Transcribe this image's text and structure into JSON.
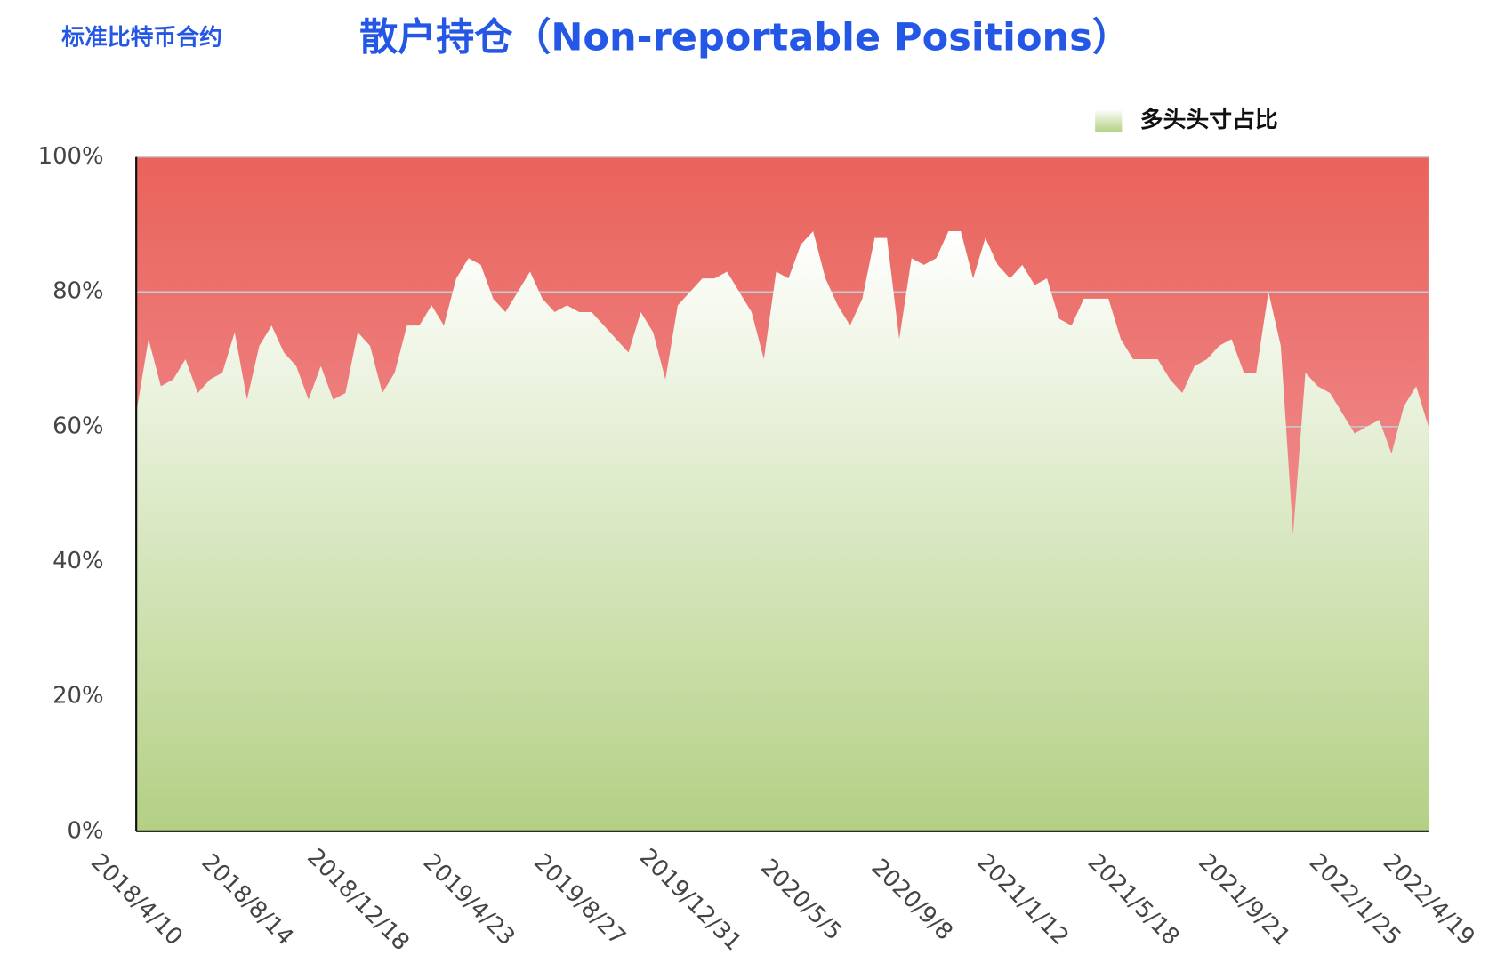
{
  "chart_data": {
    "type": "area",
    "subtitle": "标准比特币合约",
    "title": "散户持仓（Non-reportable Positions）",
    "categories": [
      "2018/4/10",
      null,
      null,
      null,
      null,
      null,
      null,
      null,
      null,
      "2018/8/14",
      null,
      null,
      null,
      null,
      null,
      null,
      null,
      null,
      "2018/12/18",
      null,
      null,
      null,
      null,
      null,
      null,
      null,
      null,
      "2019/4/23",
      null,
      null,
      null,
      null,
      null,
      null,
      null,
      null,
      "2019/8/27",
      null,
      null,
      null,
      null,
      null,
      null,
      null,
      null,
      "2019/12/31",
      null,
      null,
      null,
      null,
      null,
      null,
      null,
      null,
      "2020/5/5",
      null,
      null,
      null,
      null,
      null,
      null,
      null,
      null,
      "2020/9/8",
      null,
      null,
      null,
      null,
      null,
      null,
      null,
      null,
      "2021/1/12",
      null,
      null,
      null,
      null,
      null,
      null,
      null,
      null,
      "2021/5/18",
      null,
      null,
      null,
      null,
      null,
      null,
      null,
      null,
      "2021/9/21",
      null,
      null,
      null,
      null,
      null,
      null,
      null,
      null,
      "2022/1/25",
      null,
      null,
      null,
      null,
      null,
      "2022/4/19"
    ],
    "series": [
      {
        "name": "多头头寸占比",
        "color": "#b3d084",
        "values": [
          62,
          73,
          66,
          67,
          70,
          65,
          67,
          68,
          74,
          64,
          72,
          75,
          71,
          69,
          64,
          69,
          64,
          65,
          74,
          72,
          65,
          68,
          75,
          75,
          78,
          75,
          82,
          85,
          84,
          79,
          77,
          80,
          83,
          79,
          77,
          78,
          77,
          77,
          75,
          73,
          71,
          77,
          74,
          67,
          78,
          80,
          82,
          82,
          83,
          80,
          77,
          70,
          83,
          82,
          87,
          89,
          82,
          78,
          75,
          79,
          88,
          88,
          73,
          85,
          84,
          85,
          89,
          89,
          82,
          88,
          84,
          82,
          84,
          81,
          82,
          76,
          75,
          79,
          79,
          79,
          73,
          70,
          70,
          70,
          67,
          65,
          69,
          70,
          72,
          73,
          68,
          68,
          80,
          72,
          44,
          68,
          66,
          65,
          62,
          59,
          60,
          61,
          56,
          63,
          66,
          60
        ]
      }
    ],
    "ylim": [
      0,
      100
    ],
    "yticks": [
      {
        "value": 0,
        "label": "0%"
      },
      {
        "value": 20,
        "label": "20%"
      },
      {
        "value": 40,
        "label": "40%"
      },
      {
        "value": 60,
        "label": "60%"
      },
      {
        "value": 80,
        "label": "80%"
      },
      {
        "value": 100,
        "label": "100%"
      }
    ],
    "grid": true
  }
}
